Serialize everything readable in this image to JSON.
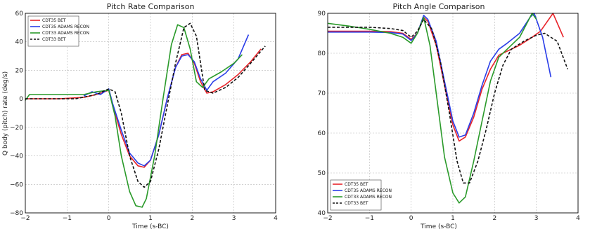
{
  "chart_data": [
    {
      "type": "line",
      "title": "Pitch Rate Comparison",
      "xlabel": "Time (s-BC)",
      "ylabel": "Q body (pitch) rate (deg/s)",
      "xlim": [
        -2,
        4
      ],
      "ylim": [
        -80,
        60
      ],
      "xticks": [
        -2,
        -1,
        0,
        1,
        2,
        3,
        4
      ],
      "yticks": [
        -80,
        -60,
        -40,
        -20,
        0,
        20,
        40,
        60
      ],
      "xticklabels": [
        "−2",
        "−1",
        "0",
        "1",
        "2",
        "3",
        "4"
      ],
      "yticklabels": [
        "−80",
        "−60",
        "−40",
        "−20",
        "0",
        "20",
        "40",
        "60"
      ],
      "grid": true,
      "legend_position": "top-left",
      "series": [
        {
          "name": "CDT35 BET",
          "color": "#e8242a",
          "dash": false,
          "x": [
            -2,
            -1.2,
            -0.6,
            -0.3,
            0,
            0.1,
            0.3,
            0.5,
            0.7,
            0.85,
            1.0,
            1.2,
            1.4,
            1.6,
            1.75,
            1.9,
            2.05,
            2.2,
            2.35,
            2.5,
            2.8,
            3.1,
            3.4,
            3.65
          ],
          "y": [
            0,
            0,
            1,
            3,
            6,
            -5,
            -25,
            -40,
            -47,
            -48,
            -43,
            -25,
            0,
            22,
            31,
            32,
            25,
            12,
            4,
            5,
            10,
            17,
            26,
            35
          ]
        },
        {
          "name": "CDT35 ADAMS RECON",
          "color": "#2a3ee8",
          "dash": false,
          "x": [
            -0.6,
            -0.4,
            -0.2,
            0,
            0.1,
            0.3,
            0.5,
            0.7,
            0.85,
            1.0,
            1.2,
            1.4,
            1.6,
            1.75,
            1.9,
            2.05,
            2.2,
            2.35,
            2.5,
            2.8,
            3.1,
            3.35
          ],
          "y": [
            2,
            5,
            3,
            7,
            -4,
            -22,
            -38,
            -45,
            -47,
            -43,
            -25,
            0,
            22,
            30,
            31,
            26,
            14,
            6,
            12,
            18,
            28,
            45
          ]
        },
        {
          "name": "CDT33 ADAMS RECON",
          "color": "#2a9a2a",
          "dash": false,
          "x": [
            -2,
            -1.9,
            -0.8,
            -0.6,
            -0.3,
            0,
            0.15,
            0.3,
            0.5,
            0.65,
            0.8,
            0.9,
            1.1,
            1.3,
            1.5,
            1.65,
            1.8,
            1.95,
            2.1,
            2.25,
            2.4,
            2.7,
            3.0,
            3.2
          ],
          "y": [
            -1,
            3,
            3,
            3,
            5,
            6,
            -12,
            -40,
            -65,
            -75,
            -76,
            -70,
            -40,
            0,
            38,
            52,
            50,
            35,
            12,
            8,
            14,
            19,
            25,
            31
          ]
        },
        {
          "name": "CDT33 BET",
          "color": "#111111",
          "dash": true,
          "x": [
            -2,
            -0.8,
            -0.3,
            0,
            0.15,
            0.3,
            0.5,
            0.7,
            0.85,
            1.0,
            1.2,
            1.4,
            1.6,
            1.8,
            1.95,
            2.1,
            2.3,
            2.5,
            2.8,
            3.1,
            3.4,
            3.75
          ],
          "y": [
            0,
            0,
            3,
            7,
            5,
            -10,
            -40,
            -58,
            -62,
            -58,
            -35,
            -5,
            25,
            50,
            53,
            44,
            6,
            4,
            8,
            15,
            25,
            37
          ]
        }
      ]
    },
    {
      "type": "line",
      "title": "Pitch Angle Comparison",
      "xlabel": "Time (s-BC)",
      "ylabel": "",
      "xlim": [
        -2,
        4
      ],
      "ylim": [
        40,
        90
      ],
      "xticks": [
        -2,
        -1,
        0,
        1,
        2,
        3,
        4
      ],
      "yticks": [
        40,
        50,
        60,
        70,
        80,
        90
      ],
      "xticklabels": [
        "−2",
        "−1",
        "0",
        "1",
        "2",
        "3",
        "4"
      ],
      "yticklabels": [
        "40",
        "50",
        "60",
        "70",
        "80",
        "90"
      ],
      "grid": true,
      "legend_position": "bottom-left",
      "series": [
        {
          "name": "CDT35 BET",
          "color": "#e8242a",
          "dash": false,
          "x": [
            -2,
            -1,
            -0.5,
            -0.2,
            0,
            0.15,
            0.3,
            0.4,
            0.6,
            0.8,
            1.0,
            1.15,
            1.3,
            1.5,
            1.7,
            1.9,
            2.1,
            2.3,
            2.6,
            2.9,
            3.1,
            3.4,
            3.65
          ],
          "y": [
            85.5,
            85.5,
            85.4,
            85,
            83.5,
            85,
            89,
            88,
            82,
            72,
            62,
            58,
            59,
            64,
            71,
            76,
            79.5,
            80.5,
            82,
            84,
            85.5,
            90,
            84
          ]
        },
        {
          "name": "CDT35 ADAMS RECON",
          "color": "#2a3ee8",
          "dash": false,
          "x": [
            -2,
            -1,
            -0.5,
            -0.2,
            0,
            0.15,
            0.3,
            0.4,
            0.6,
            0.8,
            1.0,
            1.15,
            1.3,
            1.5,
            1.7,
            1.9,
            2.1,
            2.3,
            2.6,
            2.85,
            2.95,
            3.15,
            3.35
          ],
          "y": [
            85.3,
            85.3,
            85.2,
            84.8,
            83.2,
            85,
            89.5,
            88.5,
            83,
            73,
            63,
            59,
            59.5,
            65,
            72,
            78,
            81,
            82.5,
            85,
            89,
            90,
            84,
            74
          ]
        },
        {
          "name": "CDT33 ADAMS RECON",
          "color": "#2a9a2a",
          "dash": false,
          "x": [
            -2,
            -1.5,
            -1,
            -0.5,
            -0.2,
            0,
            0.15,
            0.3,
            0.45,
            0.6,
            0.8,
            1.0,
            1.15,
            1.3,
            1.5,
            1.7,
            1.9,
            2.1,
            2.3,
            2.6,
            2.8,
            2.9,
            3.0
          ],
          "y": [
            87.5,
            86.8,
            86,
            85,
            84,
            82.5,
            85,
            89,
            82,
            70,
            54,
            45,
            42.5,
            44,
            53,
            63,
            73,
            79,
            81,
            84,
            88,
            90,
            88.5
          ]
        },
        {
          "name": "CDT33 BET",
          "color": "#111111",
          "dash": true,
          "x": [
            -2,
            -1,
            -0.5,
            -0.2,
            0,
            0.15,
            0.3,
            0.5,
            0.7,
            0.9,
            1.1,
            1.25,
            1.4,
            1.6,
            1.8,
            2.0,
            2.2,
            2.4,
            2.7,
            3.0,
            3.2,
            3.5,
            3.75
          ],
          "y": [
            86.5,
            86.5,
            86.2,
            85.7,
            84,
            85.5,
            88.5,
            86,
            78,
            66,
            53,
            47.5,
            47.5,
            53,
            61,
            70,
            77,
            81,
            83,
            84.5,
            85,
            83,
            76
          ]
        }
      ]
    }
  ]
}
